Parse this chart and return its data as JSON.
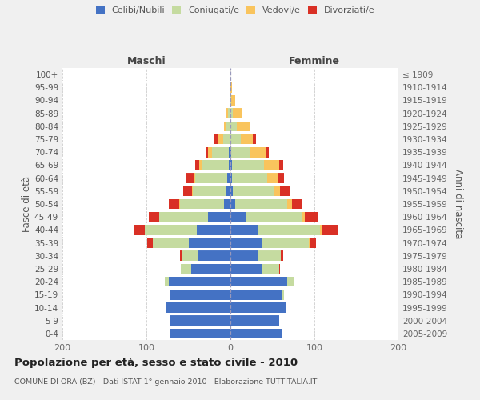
{
  "age_groups": [
    "0-4",
    "5-9",
    "10-14",
    "15-19",
    "20-24",
    "25-29",
    "30-34",
    "35-39",
    "40-44",
    "45-49",
    "50-54",
    "55-59",
    "60-64",
    "65-69",
    "70-74",
    "75-79",
    "80-84",
    "85-89",
    "90-94",
    "95-99",
    "100+"
  ],
  "birth_years": [
    "2005-2009",
    "2000-2004",
    "1995-1999",
    "1990-1994",
    "1985-1989",
    "1980-1984",
    "1975-1979",
    "1970-1974",
    "1965-1969",
    "1960-1964",
    "1955-1959",
    "1950-1954",
    "1945-1949",
    "1940-1944",
    "1935-1939",
    "1930-1934",
    "1925-1929",
    "1920-1924",
    "1915-1919",
    "1910-1914",
    "≤ 1909"
  ],
  "males": {
    "celibi": [
      72,
      72,
      77,
      72,
      73,
      47,
      38,
      50,
      40,
      27,
      8,
      5,
      4,
      2,
      2,
      0,
      0,
      0,
      0,
      0,
      0
    ],
    "coniugati": [
      0,
      0,
      0,
      0,
      5,
      12,
      20,
      42,
      62,
      58,
      52,
      40,
      38,
      32,
      20,
      9,
      5,
      3,
      1,
      0,
      0
    ],
    "vedovi": [
      0,
      0,
      0,
      0,
      0,
      0,
      0,
      0,
      0,
      0,
      1,
      1,
      2,
      3,
      5,
      5,
      3,
      3,
      0,
      0,
      0
    ],
    "divorziati": [
      0,
      0,
      0,
      0,
      0,
      0,
      2,
      7,
      12,
      12,
      12,
      10,
      8,
      5,
      2,
      5,
      0,
      0,
      0,
      0,
      0
    ]
  },
  "females": {
    "nubili": [
      62,
      58,
      67,
      62,
      68,
      38,
      32,
      38,
      32,
      18,
      6,
      3,
      2,
      2,
      1,
      0,
      0,
      0,
      0,
      0,
      0
    ],
    "coniugate": [
      0,
      0,
      0,
      2,
      8,
      20,
      28,
      55,
      75,
      68,
      62,
      48,
      42,
      38,
      22,
      12,
      8,
      3,
      1,
      0,
      0
    ],
    "vedove": [
      0,
      0,
      0,
      0,
      0,
      0,
      0,
      1,
      2,
      3,
      5,
      8,
      12,
      18,
      20,
      15,
      15,
      10,
      5,
      2,
      0
    ],
    "divorziate": [
      0,
      0,
      0,
      0,
      0,
      1,
      3,
      8,
      20,
      15,
      12,
      12,
      8,
      5,
      3,
      3,
      0,
      0,
      0,
      0,
      0
    ]
  },
  "colors": {
    "celibi": "#4472c4",
    "coniugati": "#c5dba0",
    "vedovi": "#f9c45d",
    "divorziati": "#d93025"
  },
  "xlim": [
    -200,
    200
  ],
  "xticks": [
    -200,
    -100,
    0,
    100,
    200
  ],
  "xticklabels": [
    "200",
    "100",
    "0",
    "100",
    "200"
  ],
  "title": "Popolazione per età, sesso e stato civile - 2010",
  "subtitle": "COMUNE DI ORA (BZ) - Dati ISTAT 1° gennaio 2010 - Elaborazione TUTTITALIA.IT",
  "ylabel_left": "Fasce di età",
  "ylabel_right": "Anni di nascita",
  "label_maschi": "Maschi",
  "label_femmine": "Femmine",
  "legend_labels": [
    "Celibi/Nubili",
    "Coniugati/e",
    "Vedovi/e",
    "Divorziati/e"
  ],
  "bg_color": "#f0f0f0",
  "plot_bg_color": "#ffffff"
}
